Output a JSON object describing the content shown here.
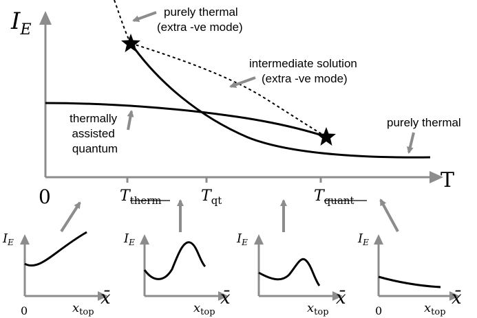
{
  "main_plot": {
    "y_axis_label": "I",
    "y_axis_label_sub": "E",
    "x_axis_label": "T",
    "origin_label": "0",
    "ticks": [
      {
        "main": "T",
        "sub": "therm",
        "struck": true
      },
      {
        "main": "T",
        "sub": "qt",
        "struck": false
      },
      {
        "main": "T",
        "sub": "quant",
        "struck": true
      }
    ],
    "annotations": {
      "purely_thermal_top": [
        "purely thermal",
        "(extra -ve mode)"
      ],
      "intermediate": [
        "intermediate solution",
        "(extra -ve mode)"
      ],
      "thermally_assisted": [
        "thermally",
        "assisted",
        "quantum"
      ],
      "purely_thermal_right": [
        "purely thermal"
      ]
    }
  },
  "insets": {
    "y_label": "I",
    "y_label_sub": "E",
    "x_label": "x̄",
    "zero_label": "0",
    "top_label": "x",
    "top_label_sub": "top",
    "panels": [
      {
        "id": "inset-1",
        "zero_shown": true
      },
      {
        "id": "inset-2",
        "zero_shown": false
      },
      {
        "id": "inset-3",
        "zero_shown": false
      },
      {
        "id": "inset-4",
        "zero_shown": true
      }
    ]
  },
  "colors": {
    "axis": "#8c8c8c",
    "arrow": "#8c8c8c",
    "curve": "#000000"
  }
}
